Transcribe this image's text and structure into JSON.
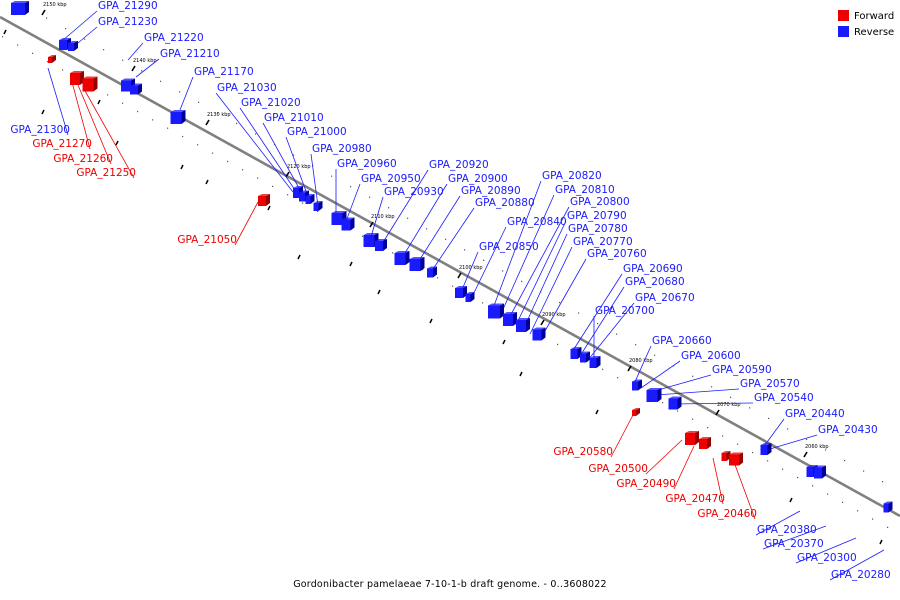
{
  "colors": {
    "forward": "#ee0000",
    "reverse": "#1a1aff",
    "backbone": "#808080",
    "forward_dark": "#990000",
    "reverse_dark": "#00009a"
  },
  "legend": [
    {
      "label": "Forward",
      "color": "#ee0000"
    },
    {
      "label": "Reverse",
      "color": "#1a1aff"
    }
  ],
  "caption": "Gordonibacter pamelaeae 7-10-1-b draft genome. - 0..3608022",
  "ticks": [
    {
      "label": "2150 kbp"
    },
    {
      "label": "2140 kbp"
    },
    {
      "label": "2130 kbp"
    },
    {
      "label": "2120 kbp"
    },
    {
      "label": "2110 kbp"
    },
    {
      "label": "2100 kbp"
    },
    {
      "label": "2090 kbp"
    },
    {
      "label": "2080 kbp"
    },
    {
      "label": "2070 kbp"
    },
    {
      "label": "2060 kbp"
    }
  ],
  "genes": [
    {
      "id": "GPA_21290",
      "strand": "reverse"
    },
    {
      "id": "GPA_21230",
      "strand": "reverse"
    },
    {
      "id": "GPA_21220",
      "strand": "reverse"
    },
    {
      "id": "GPA_21210",
      "strand": "reverse"
    },
    {
      "id": "GPA_21170",
      "strand": "reverse"
    },
    {
      "id": "GPA_21030",
      "strand": "reverse"
    },
    {
      "id": "GPA_21020",
      "strand": "reverse"
    },
    {
      "id": "GPA_21010",
      "strand": "reverse"
    },
    {
      "id": "GPA_21000",
      "strand": "reverse"
    },
    {
      "id": "GPA_20980",
      "strand": "reverse"
    },
    {
      "id": "GPA_20960",
      "strand": "reverse"
    },
    {
      "id": "GPA_20950",
      "strand": "reverse"
    },
    {
      "id": "GPA_20930",
      "strand": "reverse"
    },
    {
      "id": "GPA_20920",
      "strand": "reverse"
    },
    {
      "id": "GPA_20900",
      "strand": "reverse"
    },
    {
      "id": "GPA_20890",
      "strand": "reverse"
    },
    {
      "id": "GPA_20880",
      "strand": "reverse"
    },
    {
      "id": "GPA_20850",
      "strand": "reverse"
    },
    {
      "id": "GPA_20840",
      "strand": "reverse"
    },
    {
      "id": "GPA_20820",
      "strand": "reverse"
    },
    {
      "id": "GPA_20810",
      "strand": "reverse"
    },
    {
      "id": "GPA_20800",
      "strand": "reverse"
    },
    {
      "id": "GPA_20790",
      "strand": "reverse"
    },
    {
      "id": "GPA_20780",
      "strand": "reverse"
    },
    {
      "id": "GPA_20770",
      "strand": "reverse"
    },
    {
      "id": "GPA_20760",
      "strand": "reverse"
    },
    {
      "id": "GPA_20690",
      "strand": "reverse"
    },
    {
      "id": "GPA_20680",
      "strand": "reverse"
    },
    {
      "id": "GPA_20670",
      "strand": "reverse"
    },
    {
      "id": "GPA_20700",
      "strand": "reverse"
    },
    {
      "id": "GPA_20660",
      "strand": "reverse"
    },
    {
      "id": "GPA_20600",
      "strand": "reverse"
    },
    {
      "id": "GPA_20590",
      "strand": "reverse"
    },
    {
      "id": "GPA_20570",
      "strand": "reverse"
    },
    {
      "id": "GPA_20540",
      "strand": "reverse"
    },
    {
      "id": "GPA_20440",
      "strand": "reverse"
    },
    {
      "id": "GPA_20430",
      "strand": "reverse"
    },
    {
      "id": "GPA_20380",
      "strand": "reverse"
    },
    {
      "id": "GPA_20370",
      "strand": "reverse"
    },
    {
      "id": "GPA_20300",
      "strand": "reverse"
    },
    {
      "id": "GPA_20280",
      "strand": "reverse"
    },
    {
      "id": "GPA_21300",
      "strand": "reverse"
    },
    {
      "id": "GPA_21270",
      "strand": "forward"
    },
    {
      "id": "GPA_21260",
      "strand": "forward"
    },
    {
      "id": "GPA_21250",
      "strand": "forward"
    },
    {
      "id": "GPA_21050",
      "strand": "forward"
    },
    {
      "id": "GPA_20580",
      "strand": "forward"
    },
    {
      "id": "GPA_20500",
      "strand": "forward"
    },
    {
      "id": "GPA_20490",
      "strand": "forward"
    },
    {
      "id": "GPA_20470",
      "strand": "forward"
    },
    {
      "id": "GPA_20460",
      "strand": "forward"
    }
  ]
}
